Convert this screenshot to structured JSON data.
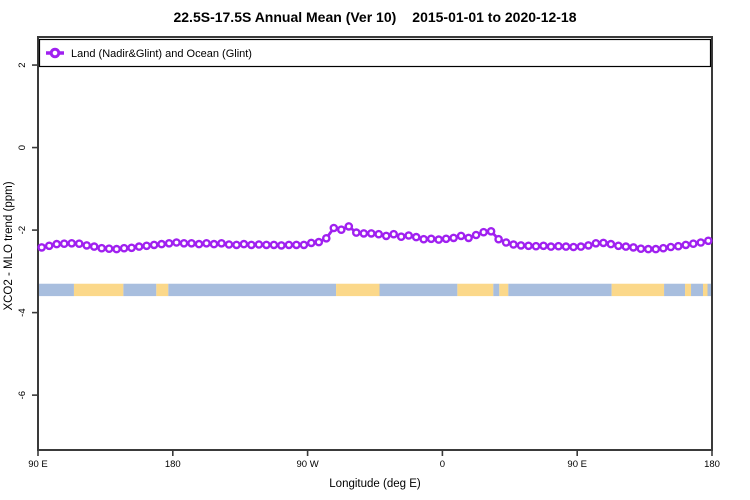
{
  "header": {
    "title_region": "22.5S-17.5S Annual Mean (Ver 10)",
    "title_dates": "2015-01-01 to 2020-12-18"
  },
  "legend": {
    "label": "Land (Nadir&Glint) and Ocean (Glint)",
    "position": "top-full-width"
  },
  "colors": {
    "series": "#A020F0",
    "marker_fill": "#ffffff",
    "ocean": "#a8bede",
    "land": "#fbd88a",
    "frame": "#3a3a3a",
    "text": "#000000",
    "background": "#ffffff"
  },
  "chart_data": {
    "type": "line",
    "title": "22.5S-17.5S Annual Mean (Ver 10)   2015-01-01 to 2020-12-18",
    "xlabel": "Longitude (deg E)",
    "ylabel": "XCO2 - MLO trend (ppm)",
    "xlim": [
      90,
      540
    ],
    "ylim": [
      -7.33,
      2.68
    ],
    "grid": false,
    "legend_position": "top",
    "xticks": [
      {
        "pos": 90,
        "label": "90 E"
      },
      {
        "pos": 180,
        "label": "180"
      },
      {
        "pos": 270,
        "label": "90 W"
      },
      {
        "pos": 360,
        "label": "0"
      },
      {
        "pos": 450,
        "label": "90 E"
      },
      {
        "pos": 540,
        "label": "180"
      }
    ],
    "yticks": [
      {
        "pos": 2,
        "label": "2"
      },
      {
        "pos": 0,
        "label": "0"
      },
      {
        "pos": -2,
        "label": "-2"
      },
      {
        "pos": -4,
        "label": "-4"
      },
      {
        "pos": -6,
        "label": "-6"
      }
    ],
    "series": [
      {
        "name": "Land (Nadir&Glint) and Ocean (Glint)",
        "color": "#A020F0",
        "marker": "open-circle",
        "x": [
          92.5,
          97.5,
          102.5,
          107.5,
          112.5,
          117.5,
          122.5,
          127.5,
          132.5,
          137.5,
          142.5,
          147.5,
          152.5,
          157.5,
          162.5,
          167.5,
          172.5,
          177.5,
          182.5,
          187.5,
          192.5,
          197.5,
          202.5,
          207.5,
          212.5,
          217.5,
          222.5,
          227.5,
          232.5,
          237.5,
          242.5,
          247.5,
          252.5,
          257.5,
          262.5,
          267.5,
          272.5,
          277.5,
          282.5,
          287.5,
          292.5,
          297.5,
          302.5,
          307.5,
          312.5,
          317.5,
          322.5,
          327.5,
          332.5,
          337.5,
          342.5,
          347.5,
          352.5,
          357.5,
          362.5,
          367.5,
          372.5,
          377.5,
          382.5,
          387.5,
          392.5,
          397.5,
          402.5,
          407.5,
          412.5,
          417.5,
          422.5,
          427.5,
          432.5,
          437.5,
          442.5,
          447.5,
          452.5,
          457.5,
          462.5,
          467.5,
          472.5,
          477.5,
          482.5,
          487.5,
          492.5,
          497.5,
          502.5,
          507.5,
          512.5,
          517.5,
          522.5,
          527.5,
          532.5,
          537.5
        ],
        "y": [
          -2.42,
          -2.38,
          -2.34,
          -2.33,
          -2.32,
          -2.33,
          -2.37,
          -2.4,
          -2.44,
          -2.45,
          -2.46,
          -2.44,
          -2.43,
          -2.4,
          -2.38,
          -2.36,
          -2.34,
          -2.32,
          -2.3,
          -2.32,
          -2.32,
          -2.34,
          -2.32,
          -2.34,
          -2.32,
          -2.35,
          -2.36,
          -2.34,
          -2.36,
          -2.35,
          -2.36,
          -2.36,
          -2.37,
          -2.36,
          -2.36,
          -2.36,
          -2.31,
          -2.29,
          -2.2,
          -1.95,
          -1.99,
          -1.91,
          -2.06,
          -2.08,
          -2.08,
          -2.1,
          -2.14,
          -2.1,
          -2.16,
          -2.13,
          -2.17,
          -2.22,
          -2.21,
          -2.23,
          -2.21,
          -2.19,
          -2.14,
          -2.19,
          -2.12,
          -2.05,
          -2.03,
          -2.22,
          -2.3,
          -2.35,
          -2.37,
          -2.38,
          -2.39,
          -2.38,
          -2.4,
          -2.39,
          -2.4,
          -2.41,
          -2.4,
          -2.37,
          -2.32,
          -2.31,
          -2.34,
          -2.38,
          -2.4,
          -2.42,
          -2.45,
          -2.46,
          -2.46,
          -2.44,
          -2.41,
          -2.39,
          -2.36,
          -2.33,
          -2.3,
          -2.26
        ]
      }
    ],
    "map_band": {
      "description": "land/ocean strip for 22.5S-17.5S latitude band",
      "y_top": -3.3,
      "y_bottom": -3.6,
      "segments": [
        {
          "from": 90,
          "to": 114,
          "type": "ocean"
        },
        {
          "from": 114,
          "to": 147,
          "type": "land"
        },
        {
          "from": 147,
          "to": 169,
          "type": "ocean"
        },
        {
          "from": 169,
          "to": 177,
          "type": "land"
        },
        {
          "from": 177,
          "to": 289,
          "type": "ocean"
        },
        {
          "from": 289,
          "to": 318,
          "type": "land"
        },
        {
          "from": 318,
          "to": 370,
          "type": "ocean"
        },
        {
          "from": 370,
          "to": 394,
          "type": "land"
        },
        {
          "from": 394,
          "to": 398,
          "type": "ocean"
        },
        {
          "from": 398,
          "to": 404,
          "type": "land"
        },
        {
          "from": 404,
          "to": 473,
          "type": "ocean"
        },
        {
          "from": 473,
          "to": 508,
          "type": "land"
        },
        {
          "from": 508,
          "to": 522,
          "type": "ocean"
        },
        {
          "from": 522,
          "to": 526,
          "type": "land"
        },
        {
          "from": 526,
          "to": 534,
          "type": "ocean"
        },
        {
          "from": 534,
          "to": 537,
          "type": "land"
        },
        {
          "from": 537,
          "to": 540,
          "type": "ocean"
        }
      ]
    }
  }
}
